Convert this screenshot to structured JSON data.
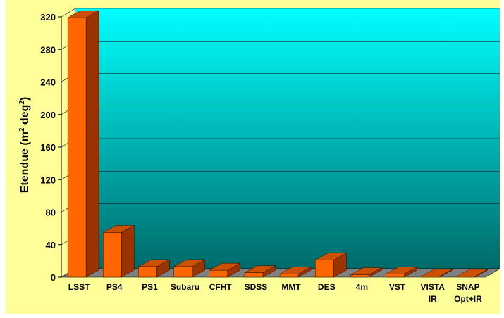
{
  "chart_data": {
    "type": "bar",
    "title": "",
    "xlabel": "",
    "ylabel": {
      "prefix": "Etendue  (m",
      "sup1": "2",
      "middle": " deg",
      "sup2": "2",
      "suffix": ")"
    },
    "ylim": [
      0,
      320
    ],
    "yticks": [
      "0",
      "40",
      "80",
      "120",
      "160",
      "200",
      "240",
      "280",
      "320"
    ],
    "categories": [
      [
        "LSST"
      ],
      [
        "PS4"
      ],
      [
        "PS1"
      ],
      [
        "Subaru"
      ],
      [
        "CFHT"
      ],
      [
        "SDSS"
      ],
      [
        "MMT"
      ],
      [
        "DES"
      ],
      [
        "4m"
      ],
      [
        "VST"
      ],
      [
        "VISTA",
        "IR"
      ],
      [
        "SNAP",
        "Opt+IR"
      ]
    ],
    "values": [
      319,
      55,
      13,
      13,
      8.5,
      5.5,
      4,
      21,
      3,
      4,
      1,
      1
    ],
    "grid": true,
    "legend": "none",
    "three_d": true,
    "colors": {
      "page_background": "#ffff99",
      "plot_top": "#00ffff",
      "plot_bottom": "#006a6a",
      "bar_front": "#ff6600",
      "bar_top": "#cc5000",
      "bar_side": "#993300",
      "floor": "#808080"
    }
  }
}
